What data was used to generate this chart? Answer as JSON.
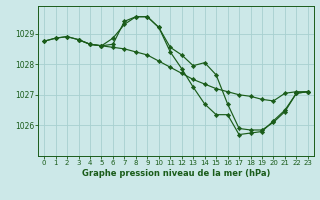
{
  "title": "Graphe pression niveau de la mer (hPa)",
  "bg_color": "#cce8e8",
  "grid_color": "#a8d0d0",
  "line_color": "#1a5c1a",
  "marker_color": "#1a5c1a",
  "xlim": [
    -0.5,
    23.5
  ],
  "ylim": [
    1025.0,
    1029.9
  ],
  "yticks": [
    1026,
    1027,
    1028,
    1029
  ],
  "xticks": [
    0,
    1,
    2,
    3,
    4,
    5,
    6,
    7,
    8,
    9,
    10,
    11,
    12,
    13,
    14,
    15,
    16,
    17,
    18,
    19,
    20,
    21,
    22,
    23
  ],
  "series": [
    {
      "x": [
        0,
        1,
        2,
        3,
        4,
        5,
        6,
        7,
        8,
        9,
        10,
        11,
        12,
        13,
        14,
        15,
        16,
        17,
        18,
        19,
        20,
        21,
        22,
        23
      ],
      "y": [
        1028.75,
        1028.85,
        1028.9,
        1028.8,
        1028.65,
        1028.6,
        1028.55,
        1028.5,
        1028.4,
        1028.3,
        1028.1,
        1027.9,
        1027.7,
        1027.5,
        1027.35,
        1027.2,
        1027.1,
        1027.0,
        1026.95,
        1026.85,
        1026.8,
        1027.05,
        1027.1,
        1027.1
      ]
    },
    {
      "x": [
        0,
        1,
        2,
        3,
        4,
        5,
        6,
        7,
        8,
        9,
        10,
        11,
        12,
        13,
        14,
        15,
        16,
        17,
        18,
        19,
        20,
        21,
        22,
        23
      ],
      "y": [
        1028.75,
        1028.85,
        1028.9,
        1028.8,
        1028.65,
        1028.6,
        1028.85,
        1029.3,
        1029.55,
        1029.55,
        1029.2,
        1028.55,
        1028.3,
        1027.95,
        1028.05,
        1027.65,
        1026.7,
        1025.9,
        1025.85,
        1025.85,
        1026.1,
        1026.45,
        1027.05,
        1027.1
      ]
    },
    {
      "x": [
        3,
        4,
        5,
        6,
        7,
        8,
        9,
        10,
        11,
        12,
        13,
        14,
        15,
        16,
        17,
        18,
        19,
        20,
        21,
        22,
        23
      ],
      "y": [
        1028.8,
        1028.65,
        1028.6,
        1028.65,
        1029.4,
        1029.55,
        1029.55,
        1029.2,
        1028.4,
        1027.85,
        1027.25,
        1026.7,
        1026.35,
        1026.35,
        1025.7,
        1025.75,
        1025.8,
        1026.15,
        1026.5,
        1027.05,
        1027.1
      ]
    }
  ]
}
